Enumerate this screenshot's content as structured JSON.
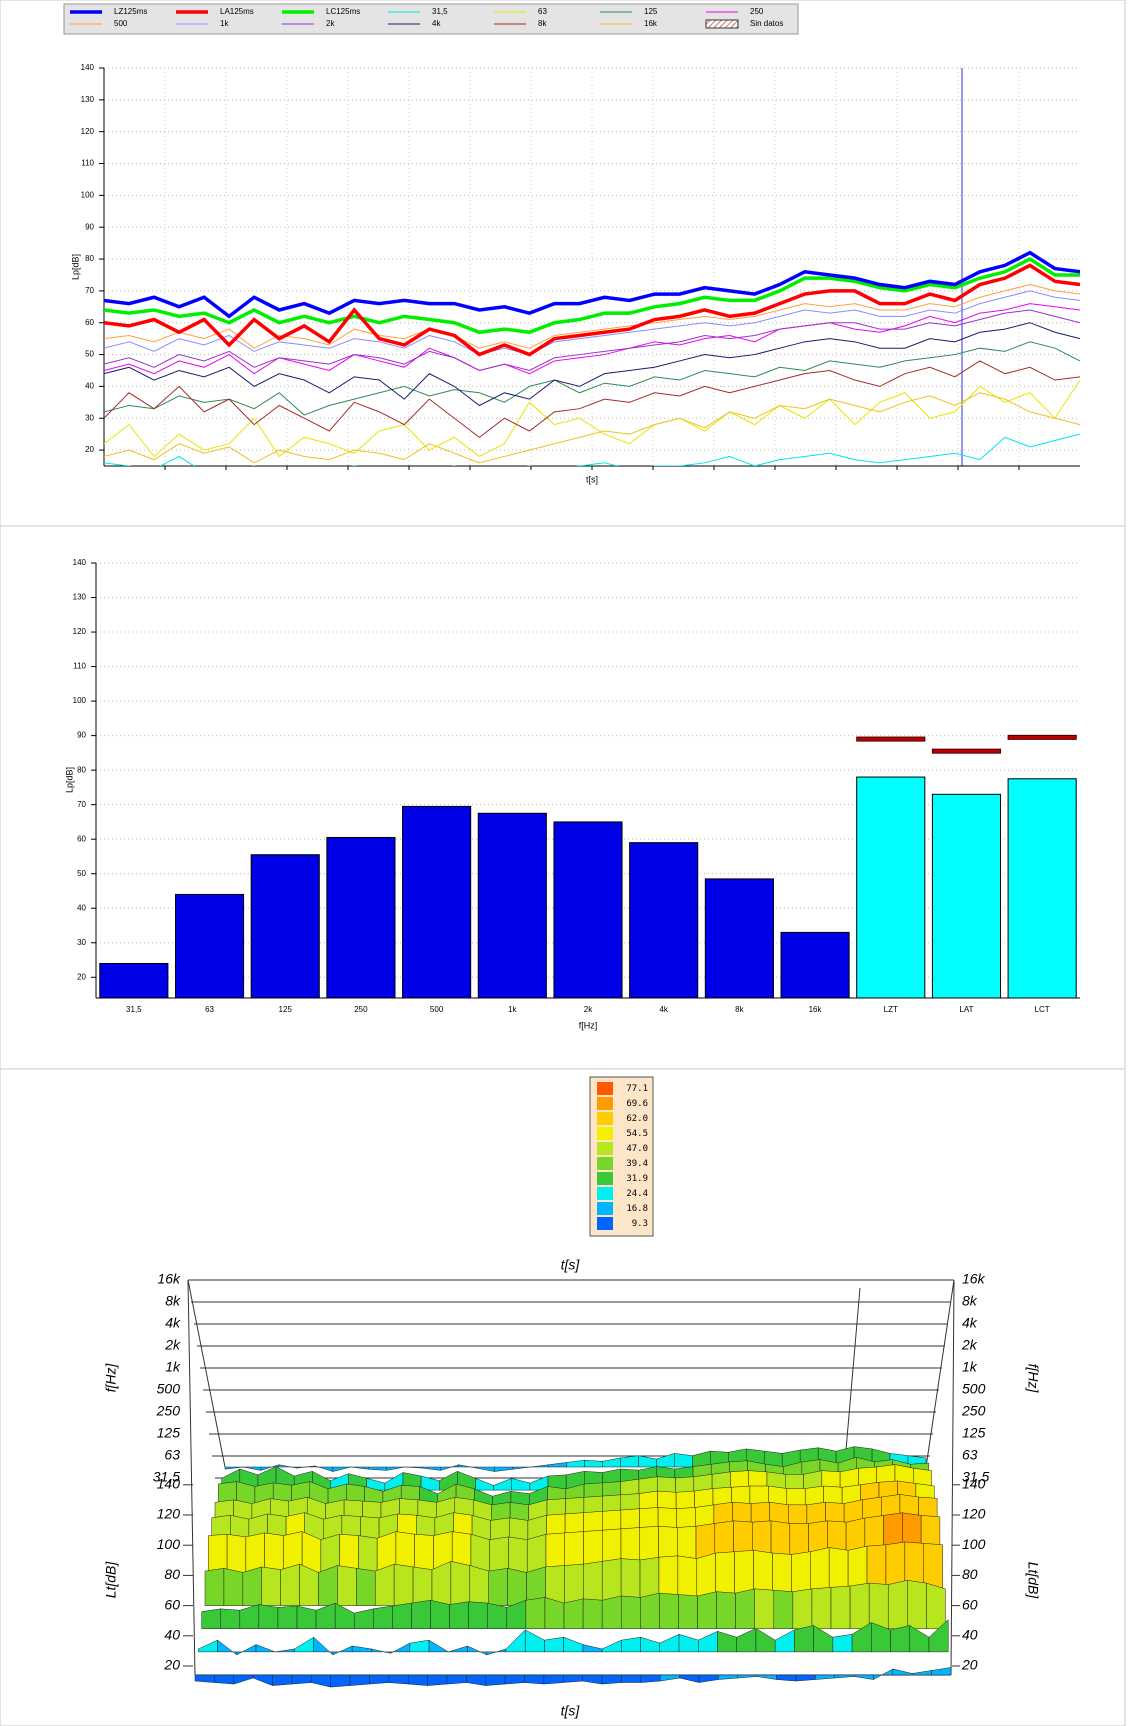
{
  "chart_data": [
    {
      "type": "line",
      "ylabel": "Lp[dB]",
      "xlabel": "t[s]",
      "ylim": [
        15,
        140
      ],
      "yticks": [
        20,
        30,
        40,
        50,
        60,
        70,
        80,
        90,
        100,
        110,
        120,
        130,
        140
      ],
      "grid": true,
      "no_data_label": "Sin datos",
      "series": [
        {
          "name": "LZ125ms",
          "color": "#0000ff",
          "bold": true,
          "values": [
            67,
            66,
            68,
            65,
            68,
            62,
            68,
            64,
            66,
            63,
            67,
            66,
            67,
            66,
            66,
            64,
            65,
            63,
            66,
            66,
            68,
            67,
            69,
            69,
            71,
            70,
            69,
            72,
            76,
            75,
            74,
            72,
            71,
            73,
            72,
            76,
            78,
            82,
            77,
            76
          ]
        },
        {
          "name": "LA125ms",
          "color": "#ff0000",
          "bold": true,
          "values": [
            60,
            59,
            61,
            57,
            61,
            53,
            61,
            55,
            59,
            54,
            64,
            55,
            53,
            58,
            56,
            50,
            53,
            50,
            55,
            56,
            57,
            58,
            61,
            62,
            64,
            62,
            63,
            66,
            69,
            70,
            70,
            66,
            66,
            69,
            67,
            72,
            74,
            78,
            73,
            72
          ]
        },
        {
          "name": "LC125ms",
          "color": "#00ee00",
          "bold": true,
          "values": [
            64,
            63,
            64,
            62,
            63,
            60,
            64,
            60,
            62,
            60,
            62,
            60,
            62,
            61,
            60,
            57,
            58,
            57,
            60,
            61,
            63,
            63,
            65,
            66,
            68,
            67,
            67,
            70,
            74,
            74,
            73,
            71,
            70,
            72,
            71,
            74,
            76,
            80,
            75,
            75
          ]
        },
        {
          "name": "31,5",
          "color": "#00e5ee",
          "values": [
            16,
            15,
            14,
            18,
            13,
            14,
            15,
            12,
            13,
            14,
            15,
            14,
            13,
            14,
            15,
            13,
            14,
            15,
            14,
            15,
            16,
            14,
            15,
            15,
            16,
            18,
            15,
            17,
            18,
            19,
            17,
            16,
            17,
            18,
            19,
            17,
            24,
            21,
            23,
            25
          ]
        },
        {
          "name": "63",
          "color": "#e6e600",
          "values": [
            22,
            28,
            18,
            25,
            20,
            22,
            30,
            18,
            24,
            22,
            19,
            26,
            28,
            20,
            24,
            18,
            22,
            35,
            28,
            30,
            25,
            22,
            28,
            30,
            26,
            32,
            28,
            34,
            30,
            36,
            28,
            35,
            38,
            30,
            32,
            40,
            35,
            38,
            30,
            42
          ]
        },
        {
          "name": "125",
          "color": "#2e8b57",
          "values": [
            32,
            34,
            33,
            37,
            35,
            36,
            33,
            38,
            31,
            34,
            36,
            38,
            40,
            37,
            39,
            38,
            35,
            40,
            42,
            38,
            41,
            40,
            43,
            42,
            45,
            44,
            43,
            46,
            45,
            48,
            47,
            46,
            48,
            49,
            50,
            52,
            51,
            54,
            52,
            48
          ]
        },
        {
          "name": "250",
          "color": "#ee00ee",
          "values": [
            45,
            47,
            44,
            48,
            46,
            50,
            44,
            49,
            47,
            45,
            50,
            48,
            46,
            52,
            49,
            45,
            47,
            44,
            48,
            49,
            50,
            52,
            54,
            53,
            55,
            56,
            54,
            58,
            59,
            60,
            58,
            57,
            59,
            62,
            60,
            63,
            64,
            66,
            65,
            64
          ]
        },
        {
          "name": "500",
          "color": "#ffa040",
          "values": [
            55,
            56,
            54,
            57,
            55,
            58,
            52,
            56,
            55,
            53,
            58,
            56,
            55,
            58,
            56,
            52,
            54,
            52,
            56,
            57,
            58,
            59,
            60,
            61,
            62,
            61,
            62,
            64,
            66,
            65,
            66,
            64,
            64,
            66,
            65,
            68,
            70,
            72,
            70,
            69
          ]
        },
        {
          "name": "1k",
          "color": "#8c8cff",
          "values": [
            52,
            54,
            51,
            55,
            53,
            56,
            51,
            54,
            53,
            52,
            55,
            54,
            52,
            56,
            54,
            50,
            52,
            50,
            54,
            55,
            56,
            57,
            58,
            59,
            60,
            59,
            60,
            62,
            64,
            63,
            64,
            62,
            62,
            64,
            63,
            66,
            68,
            70,
            68,
            67
          ]
        },
        {
          "name": "2k",
          "color": "#9932cc",
          "values": [
            47,
            49,
            46,
            50,
            48,
            51,
            46,
            49,
            48,
            47,
            50,
            49,
            47,
            51,
            49,
            45,
            47,
            45,
            49,
            50,
            51,
            52,
            53,
            54,
            56,
            55,
            56,
            58,
            59,
            60,
            60,
            58,
            58,
            60,
            59,
            61,
            63,
            64,
            62,
            60
          ]
        },
        {
          "name": "4k",
          "color": "#1a1a70",
          "values": [
            44,
            46,
            42,
            45,
            43,
            46,
            40,
            44,
            42,
            38,
            43,
            42,
            36,
            44,
            40,
            34,
            38,
            36,
            42,
            40,
            44,
            45,
            46,
            48,
            50,
            49,
            50,
            52,
            54,
            55,
            54,
            52,
            52,
            55,
            54,
            57,
            58,
            60,
            57,
            55
          ]
        },
        {
          "name": "8k",
          "color": "#a52a2a",
          "values": [
            30,
            38,
            33,
            40,
            32,
            36,
            28,
            34,
            30,
            26,
            35,
            32,
            28,
            36,
            30,
            24,
            30,
            26,
            32,
            33,
            36,
            35,
            38,
            37,
            40,
            38,
            40,
            42,
            44,
            45,
            42,
            40,
            44,
            46,
            43,
            48,
            44,
            46,
            42,
            43
          ]
        },
        {
          "name": "16k",
          "color": "#f0c020",
          "values": [
            18,
            20,
            17,
            22,
            19,
            21,
            16,
            20,
            18,
            17,
            20,
            19,
            17,
            22,
            19,
            16,
            18,
            20,
            22,
            24,
            26,
            25,
            28,
            30,
            27,
            32,
            30,
            34,
            33,
            36,
            34,
            32,
            35,
            37,
            34,
            38,
            36,
            32,
            30,
            28
          ]
        }
      ]
    },
    {
      "type": "bar",
      "ylabel": "Lp[dB]",
      "xlabel": "f[Hz]",
      "ylim": [
        14,
        140
      ],
      "yticks": [
        20,
        30,
        40,
        50,
        60,
        70,
        80,
        90,
        100,
        110,
        120,
        130,
        140
      ],
      "grid": true,
      "categories": [
        "31,5",
        "63",
        "125",
        "250",
        "500",
        "1k",
        "2k",
        "4k",
        "8k",
        "16k",
        "LZT",
        "LAT",
        "LCT"
      ],
      "values": [
        24,
        44,
        55.5,
        60.5,
        69.5,
        67.5,
        65,
        59,
        48.5,
        33,
        78,
        73,
        77.5
      ],
      "colors": [
        "#0000e6",
        "#0000e6",
        "#0000e6",
        "#0000e6",
        "#0000e6",
        "#0000e6",
        "#0000e6",
        "#0000e6",
        "#0000e6",
        "#0000e6",
        "#00ffff",
        "#00ffff",
        "#00ffff"
      ],
      "max_values": [
        null,
        null,
        null,
        null,
        null,
        null,
        null,
        null,
        null,
        null,
        89,
        85.5,
        89.5
      ],
      "max_color": "#c00000"
    },
    {
      "type": "surface3d",
      "title": "t[s]",
      "xlabel": "t[s]",
      "ylabel": "f[Hz]",
      "zlabel": "Lt[dB]",
      "yticks": [
        "16k",
        "8k",
        "4k",
        "2k",
        "1k",
        "500",
        "250",
        "125",
        "63",
        "31,5"
      ],
      "zlim": [
        20,
        140
      ],
      "zticks": [
        140,
        120,
        100,
        80,
        60,
        40,
        20
      ],
      "colorbar": {
        "levels": [
          77.1,
          69.6,
          {
            "value": 62,
            "label": "62.0"
          },
          54.5,
          {
            "value": 47,
            "label": "47.0"
          },
          39.4,
          31.9,
          24.4,
          16.8,
          9.3
        ],
        "colors": [
          "#ff5a00",
          "#ff9a00",
          "#ffcc00",
          "#f0f000",
          "#b8e61e",
          "#78d628",
          "#38c838",
          "#00f0f0",
          "#00b4ff",
          "#0064ff"
        ]
      }
    }
  ]
}
